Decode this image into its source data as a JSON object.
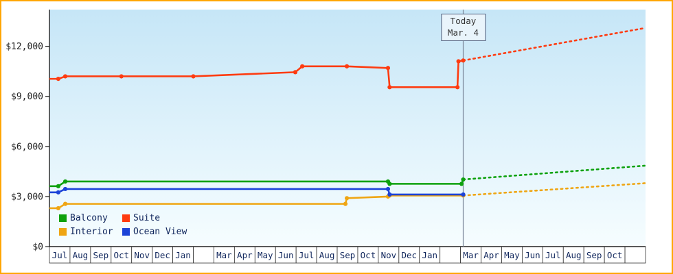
{
  "frame": {
    "border_color": "#ffa600"
  },
  "chart_data": {
    "type": "line",
    "title": "",
    "xlabel": "",
    "ylabel": "",
    "grid": false,
    "legend_position": "bottom-left",
    "ylim": [
      0,
      14200
    ],
    "x_units": 29,
    "y_ticks": [
      {
        "v": 0,
        "label": "$0"
      },
      {
        "v": 3000,
        "label": "$3,000"
      },
      {
        "v": 6000,
        "label": "$6,000"
      },
      {
        "v": 9000,
        "label": "$9,000"
      },
      {
        "v": 12000,
        "label": "$12,000"
      }
    ],
    "x_cells": [
      "Jul",
      "Aug",
      "Sep",
      "Oct",
      "Nov",
      "Dec",
      "Jan",
      "",
      "Mar",
      "Apr",
      "May",
      "Jun",
      "Jul",
      "Aug",
      "Sep",
      "Oct",
      "Nov",
      "Dec",
      "Jan",
      "",
      "Mar",
      "Apr",
      "May",
      "Jun",
      "Jul",
      "Aug",
      "Sep",
      "Oct",
      ""
    ],
    "today": {
      "x": 20.13,
      "line1": "Today",
      "line2": "Mar. 4"
    },
    "series": [
      {
        "name": "Balcony",
        "color": "#0da10d",
        "history": [
          [
            0,
            3620
          ],
          [
            0.43,
            3620
          ],
          [
            0.77,
            3900
          ],
          [
            16.47,
            3900
          ],
          [
            16.55,
            3760
          ],
          [
            20.05,
            3760
          ],
          [
            20.13,
            4020
          ]
        ],
        "forecast": [
          [
            20.13,
            4020
          ],
          [
            29,
            4850
          ]
        ]
      },
      {
        "name": "Suite",
        "color": "#fe3b10",
        "history": [
          [
            0,
            10050
          ],
          [
            0.43,
            10050
          ],
          [
            0.77,
            10200
          ],
          [
            3.5,
            10200
          ],
          [
            7.0,
            10200
          ],
          [
            11.96,
            10450
          ],
          [
            12.3,
            10800
          ],
          [
            14.47,
            10800
          ],
          [
            16.47,
            10700
          ],
          [
            16.55,
            9550
          ],
          [
            19.85,
            9550
          ],
          [
            19.9,
            11100
          ],
          [
            20.13,
            11150
          ]
        ],
        "forecast": [
          [
            20.13,
            11150
          ],
          [
            29,
            13100
          ]
        ]
      },
      {
        "name": "Interior",
        "color": "#efa513",
        "history": [
          [
            0,
            2300
          ],
          [
            0.43,
            2300
          ],
          [
            0.77,
            2560
          ],
          [
            14.4,
            2560
          ],
          [
            14.47,
            2900
          ],
          [
            16.47,
            3000
          ],
          [
            16.55,
            3060
          ],
          [
            20.13,
            3060
          ]
        ],
        "forecast": [
          [
            20.13,
            3060
          ],
          [
            29,
            3800
          ]
        ]
      },
      {
        "name": "Ocean View",
        "color": "#1c43d8",
        "history": [
          [
            0,
            3250
          ],
          [
            0.43,
            3250
          ],
          [
            0.77,
            3450
          ],
          [
            16.47,
            3450
          ],
          [
            16.55,
            3120
          ],
          [
            20.13,
            3120
          ]
        ],
        "forecast": []
      }
    ]
  }
}
